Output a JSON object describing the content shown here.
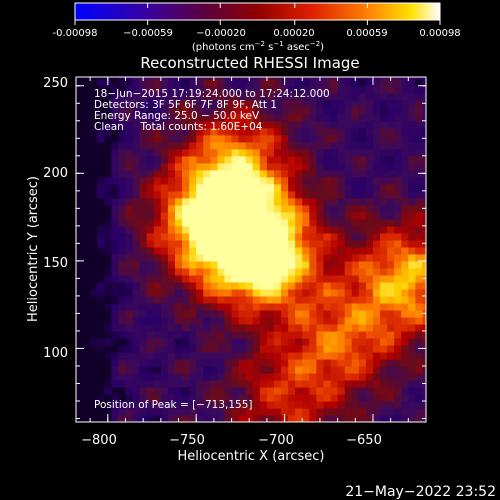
{
  "chart_data": {
    "type": "heatmap",
    "title": "Reconstructed RHESSI Image",
    "xlabel": "Heliocentric X (arcsec)",
    "ylabel": "Heliocentric Y (arcsec)",
    "xlim": [
      -818,
      -620
    ],
    "ylim": [
      58,
      255
    ],
    "x_ticks": [
      -800,
      -750,
      -700,
      -650
    ],
    "x_tick_labels": [
      "−800",
      "−750",
      "−700",
      "−650"
    ],
    "y_ticks": [
      100,
      150,
      200,
      250
    ],
    "y_tick_labels": [
      "100",
      "150",
      "200",
      "250"
    ],
    "colorbar": {
      "range": [
        -0.00098,
        0.00098
      ],
      "ticks": [
        -0.00098,
        -0.00059,
        -0.0002,
        0.0002,
        0.00059,
        0.00098
      ],
      "tick_labels": [
        "-0.00098",
        "−0.00059",
        "−0.00020",
        "0.00020",
        "0.00059",
        "0.00098"
      ],
      "unit_label_parts": {
        "a": "(photons cm",
        "b": "−2",
        "c": " s",
        "d": "−1",
        "e": " asec",
        "f": "−2",
        "g": ")"
      }
    },
    "annotations": [
      "18−Jun−2015 17:19:24.000 to 17:24:12.000",
      "Detectors: 3F 5F 6F 7F 8F 9F, Att 1",
      "Energy Range: 25.0 − 50.0 keV",
      "Clean     Total counts: 1.60E+04"
    ],
    "peak_label": "Position of Peak = [−713,155]",
    "peak": [
      -713,
      155
    ],
    "sources": [
      {
        "x": -713,
        "y": 155,
        "amp": 1.0
      },
      {
        "x": -742,
        "y": 172,
        "amp": 0.75
      },
      {
        "x": -727,
        "y": 205,
        "amp": 0.55
      },
      {
        "x": -630,
        "y": 140,
        "amp": 0.65
      },
      {
        "x": -668,
        "y": 105,
        "amp": 0.45
      },
      {
        "x": -700,
        "y": 72,
        "amp": 0.35
      }
    ],
    "colormap": [
      "#000000",
      "#2a0066",
      "#3b0a5c",
      "#6a0a1a",
      "#b00000",
      "#e03000",
      "#ff8000",
      "#ffd000",
      "#ffffa0"
    ]
  },
  "footer": {
    "timestamp": "21−May−2022 23:52"
  }
}
